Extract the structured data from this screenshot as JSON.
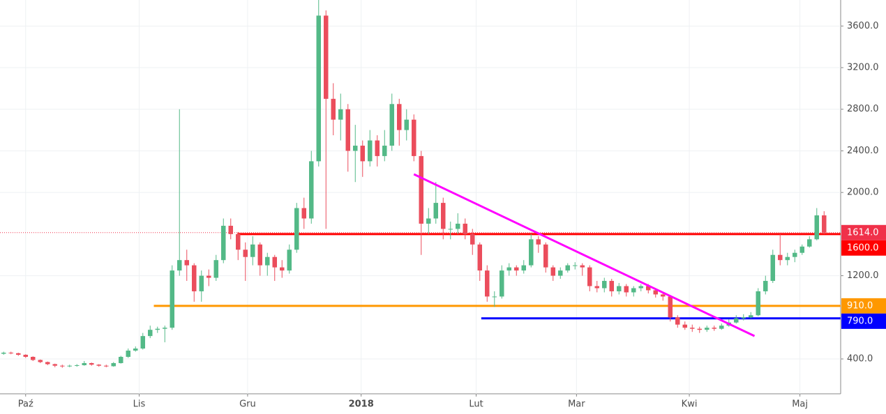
{
  "chart_data": {
    "type": "candlestick",
    "open": [
      450,
      460,
      455,
      440,
      420,
      390,
      370,
      350,
      335,
      330,
      335,
      340,
      360,
      345,
      335,
      330,
      360,
      420,
      480,
      500,
      620,
      680,
      690,
      700,
      1250,
      1350,
      1300,
      1050,
      1200,
      1180,
      1350,
      1680,
      1600,
      1450,
      1380,
      1500,
      1300,
      1380,
      1280,
      1250,
      1450,
      1850,
      1750,
      2300,
      3700,
      2900,
      2700,
      2800,
      2400,
      2450,
      2300,
      2500,
      2350,
      2450,
      2850,
      2600,
      2700,
      2350,
      1700,
      1750,
      1900,
      1650,
      1650,
      1700,
      1600,
      1500,
      1250,
      1000,
      1000,
      1250,
      1280,
      1250,
      1300,
      1550,
      1500,
      1280,
      1200,
      1250,
      1300,
      1300,
      1280,
      1100,
      1080,
      1150,
      1050,
      1100,
      1040,
      1080,
      1100,
      1060,
      1020,
      1000,
      800,
      730,
      700,
      690,
      680,
      700,
      690,
      720,
      750,
      790,
      800,
      820,
      1050,
      1150,
      1400,
      1350,
      1380,
      1420,
      1480,
      1550,
      1780
    ],
    "high": [
      470,
      470,
      460,
      445,
      425,
      395,
      375,
      355,
      345,
      345,
      350,
      380,
      365,
      350,
      345,
      370,
      430,
      500,
      520,
      650,
      720,
      710,
      720,
      1300,
      2800,
      1450,
      1320,
      1250,
      1260,
      1400,
      1750,
      1750,
      1620,
      1520,
      1580,
      1520,
      1420,
      1400,
      1350,
      1500,
      1900,
      1950,
      2400,
      3850,
      3750,
      3050,
      2950,
      2850,
      2650,
      2500,
      2600,
      2550,
      2600,
      2950,
      2900,
      2800,
      2750,
      2400,
      1850,
      2100,
      1950,
      1720,
      1800,
      1750,
      1650,
      1520,
      1300,
      1050,
      1300,
      1320,
      1300,
      1350,
      1600,
      1580,
      1520,
      1300,
      1280,
      1320,
      1330,
      1320,
      1300,
      1150,
      1180,
      1170,
      1130,
      1120,
      1100,
      1120,
      1120,
      1080,
      1040,
      1010,
      820,
      760,
      730,
      710,
      720,
      720,
      740,
      780,
      820,
      830,
      850,
      1080,
      1200,
      1450,
      1600,
      1420,
      1450,
      1500,
      1580,
      1850,
      1820
    ],
    "low": [
      440,
      445,
      430,
      410,
      380,
      360,
      340,
      320,
      315,
      320,
      325,
      335,
      335,
      325,
      320,
      325,
      355,
      410,
      470,
      490,
      600,
      650,
      560,
      680,
      1200,
      1150,
      950,
      950,
      1100,
      1150,
      1320,
      1550,
      1350,
      1150,
      1300,
      1200,
      1200,
      1150,
      1180,
      1220,
      1420,
      1650,
      1700,
      2250,
      1650,
      2550,
      2500,
      2200,
      2100,
      2150,
      2250,
      2250,
      2300,
      2400,
      2450,
      2500,
      2300,
      1400,
      1600,
      1700,
      1550,
      1550,
      1600,
      1550,
      1400,
      1150,
      950,
      900,
      980,
      1200,
      1200,
      1220,
      1280,
      1420,
      1230,
      1150,
      1170,
      1230,
      1260,
      1200,
      1050,
      1040,
      1040,
      1000,
      1020,
      1000,
      1000,
      1050,
      1030,
      990,
      960,
      760,
      700,
      680,
      660,
      650,
      660,
      670,
      680,
      710,
      740,
      770,
      790,
      810,
      1020,
      1130,
      1300,
      1300,
      1330,
      1400,
      1470,
      1540,
      1600
    ],
    "close": [
      460,
      455,
      440,
      420,
      390,
      370,
      350,
      335,
      330,
      335,
      340,
      360,
      345,
      335,
      330,
      360,
      420,
      480,
      500,
      620,
      680,
      690,
      700,
      1250,
      1350,
      1300,
      1050,
      1200,
      1180,
      1350,
      1680,
      1600,
      1450,
      1380,
      1500,
      1300,
      1380,
      1280,
      1250,
      1450,
      1850,
      1750,
      2300,
      3700,
      2900,
      2700,
      2800,
      2400,
      2450,
      2300,
      2500,
      2350,
      2450,
      2850,
      2600,
      2700,
      2350,
      1700,
      1750,
      1900,
      1650,
      1650,
      1700,
      1600,
      1500,
      1250,
      1000,
      1000,
      1250,
      1280,
      1250,
      1300,
      1550,
      1500,
      1280,
      1200,
      1250,
      1300,
      1300,
      1280,
      1100,
      1080,
      1150,
      1050,
      1100,
      1040,
      1080,
      1100,
      1060,
      1020,
      1000,
      800,
      730,
      700,
      690,
      680,
      700,
      690,
      720,
      750,
      790,
      800,
      820,
      1050,
      1150,
      1400,
      1350,
      1380,
      1420,
      1480,
      1550,
      1780,
      1614
    ],
    "up_color": "#53b987",
    "down_color": "#eb4d5c",
    "xlim": [
      -0.5,
      114.26
    ],
    "xticks": [
      {
        "value": 3,
        "label": "Paź"
      },
      {
        "value": 18.5,
        "label": "Lis"
      },
      {
        "value": 33.3,
        "label": "Gru"
      },
      {
        "value": 48.8,
        "label": "2018"
      },
      {
        "value": 64.5,
        "label": "Lut"
      },
      {
        "value": 78.2,
        "label": "Mar"
      },
      {
        "value": 93.6,
        "label": "Kwi"
      },
      {
        "value": 108.7,
        "label": "Maj"
      }
    ],
    "ylim": [
      65,
      3850
    ],
    "yticks": [
      {
        "value": 400,
        "label": "400.0"
      },
      {
        "value": 1200,
        "label": "1200.0"
      },
      {
        "value": 2000,
        "label": "2000.0"
      },
      {
        "value": 2400,
        "label": "2400.0"
      },
      {
        "value": 2800,
        "label": "2800.0"
      },
      {
        "value": 3200,
        "label": "3200.0"
      },
      {
        "value": 3600,
        "label": "3600.0"
      }
    ],
    "grid": true,
    "last_price": {
      "value": 1614,
      "label": "1614.0",
      "color": "#f0314a"
    },
    "levels": [
      {
        "value": 1600,
        "label": "1600.0",
        "color": "#ff0000",
        "start": 31.9
      },
      {
        "value": 910,
        "label": "910.0",
        "color": "#ff9800",
        "start": 20.5
      },
      {
        "value": 790,
        "label": "790.0",
        "color": "#0000ff",
        "start": 65.2
      }
    ],
    "trendline": {
      "from": [
        56,
        2175
      ],
      "to": [
        102.5,
        620
      ],
      "color": "#ff00ff"
    }
  }
}
